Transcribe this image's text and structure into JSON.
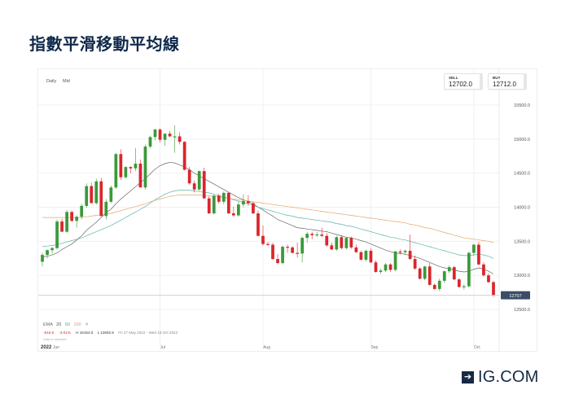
{
  "page": {
    "title": "指數平滑移動平均線",
    "brand": {
      "icon": "arrow-right-box-icon",
      "label": "IG.COM",
      "color": "#152a45"
    }
  },
  "chart_header": {
    "timeframe": "Daily",
    "price_type": "Mid",
    "sell": {
      "label": "SELL",
      "value": "12702.0"
    },
    "buy": {
      "label": "BUY",
      "value": "12712.0"
    }
  },
  "legend": {
    "indicator": "EMA",
    "periods": [
      {
        "label": "20",
        "color": "#555555"
      },
      {
        "label": "50",
        "color": "#4aa89a"
      },
      {
        "label": "100",
        "color": "#e0a060"
      }
    ],
    "close_label": "✕",
    "change": "-816.9",
    "change_pct": "-3.01%",
    "high": "H 15154.0",
    "low": "L 12692.5",
    "range": "Fri 27 May 2022 - Wed 19 Oct 2022",
    "data_note": "Data is indicative"
  },
  "colors": {
    "up": "#3a9a3a",
    "down": "#d9262c",
    "ema20": "#666666",
    "ema50": "#5bb3a8",
    "ema100": "#e3a66a",
    "grid": "#f0f0f0",
    "current_tag_bg": "#3b4d66"
  },
  "chart_data": {
    "type": "candlestick",
    "title": "指數平滑移動平均線",
    "instrument_period": "Daily Mid",
    "xlabel": "",
    "ylabel": "",
    "x_ticks": [
      {
        "label": "2022",
        "bold": true,
        "pos": 0
      },
      {
        "label": "Jun",
        "pos": 3
      },
      {
        "label": "Jul",
        "pos": 24
      },
      {
        "label": "Aug",
        "pos": 45
      },
      {
        "label": "Sep",
        "pos": 67
      },
      {
        "label": "Oct",
        "pos": 88
      }
    ],
    "y_ticks": [
      12500,
      13000,
      13500,
      14000,
      14500,
      15000,
      15500
    ],
    "y_tick_labels": [
      "12500.0",
      "13000.0",
      "13500.0",
      "14000.0",
      "14500.0",
      "15000.0",
      "15500.0"
    ],
    "ylim": [
      12000,
      15700
    ],
    "current_price": 12707,
    "current_price_label": "12707",
    "legend_position": "bottom-left",
    "grid": true,
    "ohlc": [
      [
        13200,
        13330,
        13130,
        13300
      ],
      [
        13300,
        13380,
        13250,
        13370
      ],
      [
        13370,
        13420,
        13320,
        13400
      ],
      [
        13400,
        13820,
        13380,
        13790
      ],
      [
        13790,
        13830,
        13650,
        13640
      ],
      [
        13640,
        13960,
        13620,
        13930
      ],
      [
        13930,
        13950,
        13780,
        13800
      ],
      [
        13800,
        13880,
        13700,
        13860
      ],
      [
        13860,
        14050,
        13820,
        14020
      ],
      [
        14020,
        14350,
        13990,
        14310
      ],
      [
        14310,
        14360,
        14100,
        14060
      ],
      [
        14060,
        14420,
        14040,
        14380
      ],
      [
        14380,
        14430,
        13970,
        13870
      ],
      [
        13870,
        14120,
        13820,
        14080
      ],
      [
        14080,
        14320,
        14060,
        14290
      ],
      [
        14290,
        14800,
        14270,
        14780
      ],
      [
        14780,
        14850,
        14400,
        14440
      ],
      [
        14440,
        14600,
        14420,
        14590
      ],
      [
        14590,
        14600,
        14500,
        14570
      ],
      [
        14570,
        14870,
        14530,
        14640
      ],
      [
        14640,
        14700,
        14300,
        14290
      ],
      [
        14290,
        14920,
        14260,
        14890
      ],
      [
        14890,
        15050,
        14860,
        15030
      ],
      [
        15030,
        15150,
        14980,
        15140
      ],
      [
        15140,
        15160,
        14950,
        14990
      ],
      [
        14990,
        15080,
        14900,
        15080
      ],
      [
        15080,
        15120,
        15030,
        15040
      ],
      [
        15040,
        15200,
        14800,
        15040
      ],
      [
        15040,
        15100,
        14920,
        14960
      ],
      [
        14960,
        14970,
        14540,
        14550
      ],
      [
        14550,
        14590,
        14330,
        14350
      ],
      [
        14350,
        14390,
        14220,
        14260
      ],
      [
        14260,
        14540,
        14240,
        14530
      ],
      [
        14530,
        14580,
        14120,
        14130
      ],
      [
        14130,
        14160,
        13900,
        13910
      ],
      [
        13910,
        14180,
        13890,
        14170
      ],
      [
        14170,
        14200,
        14050,
        14080
      ],
      [
        14080,
        14230,
        14040,
        14210
      ],
      [
        14210,
        14220,
        13900,
        13910
      ],
      [
        13910,
        14010,
        13860,
        13880
      ],
      [
        13880,
        14080,
        13860,
        14040
      ],
      [
        14040,
        14190,
        14000,
        14090
      ],
      [
        14090,
        14180,
        14020,
        14060
      ],
      [
        14060,
        14080,
        13900,
        13910
      ],
      [
        13910,
        13950,
        13570,
        13580
      ],
      [
        13580,
        13730,
        13440,
        13460
      ],
      [
        13460,
        13490,
        13430,
        13450
      ],
      [
        13450,
        13480,
        13230,
        13240
      ],
      [
        13240,
        13310,
        13160,
        13180
      ],
      [
        13180,
        13440,
        13160,
        13420
      ],
      [
        13420,
        13450,
        13330,
        13410
      ],
      [
        13410,
        13430,
        13320,
        13330
      ],
      [
        13330,
        13480,
        13260,
        13320
      ],
      [
        13320,
        13570,
        13190,
        13550
      ],
      [
        13550,
        13640,
        13480,
        13610
      ],
      [
        13610,
        13640,
        13530,
        13590
      ],
      [
        13590,
        13640,
        13560,
        13600
      ],
      [
        13600,
        13700,
        13560,
        13580
      ],
      [
        13580,
        13620,
        13420,
        13440
      ],
      [
        13440,
        13480,
        13370,
        13380
      ],
      [
        13380,
        13580,
        13360,
        13560
      ],
      [
        13560,
        13590,
        13380,
        13400
      ],
      [
        13400,
        13560,
        13380,
        13550
      ],
      [
        13550,
        13570,
        13390,
        13410
      ],
      [
        13410,
        13450,
        13330,
        13340
      ],
      [
        13340,
        13360,
        13220,
        13230
      ],
      [
        13230,
        13380,
        13200,
        13360
      ],
      [
        13360,
        13400,
        13180,
        13190
      ],
      [
        13190,
        13220,
        13040,
        13050
      ],
      [
        13050,
        13100,
        13020,
        13070
      ],
      [
        13070,
        13180,
        13050,
        13160
      ],
      [
        13160,
        13180,
        13050,
        13080
      ],
      [
        13080,
        13360,
        13060,
        13350
      ],
      [
        13350,
        13380,
        13310,
        13340
      ],
      [
        13340,
        13380,
        13300,
        13360
      ],
      [
        13360,
        13600,
        13230,
        13240
      ],
      [
        13240,
        13290,
        13080,
        13100
      ],
      [
        13100,
        13120,
        12940,
        12950
      ],
      [
        12950,
        13140,
        12930,
        13130
      ],
      [
        13130,
        13180,
        12850,
        12860
      ],
      [
        12860,
        12880,
        12790,
        12800
      ],
      [
        12800,
        12950,
        12770,
        12920
      ],
      [
        12920,
        13070,
        12890,
        13060
      ],
      [
        13060,
        13150,
        13030,
        13120
      ],
      [
        13120,
        13140,
        12930,
        12940
      ],
      [
        12940,
        12960,
        12820,
        12830
      ],
      [
        12830,
        12870,
        12790,
        12840
      ],
      [
        12840,
        13350,
        12820,
        13330
      ],
      [
        13330,
        13460,
        13290,
        13450
      ],
      [
        13450,
        13490,
        13150,
        13160
      ],
      [
        13160,
        13190,
        12980,
        13000
      ],
      [
        13000,
        13030,
        12890,
        12900
      ],
      [
        12900,
        12920,
        12690,
        12707
      ]
    ],
    "series": [
      {
        "name": "EMA 20",
        "values": [
          13270,
          13280,
          13300,
          13330,
          13380,
          13420,
          13460,
          13520,
          13580,
          13660,
          13720,
          13780,
          13850,
          13920,
          13970,
          14050,
          14120,
          14180,
          14240,
          14300,
          14360,
          14420,
          14490,
          14560,
          14610,
          14640,
          14660,
          14650,
          14620,
          14590,
          14550,
          14500,
          14460,
          14420,
          14380,
          14340,
          14300,
          14260,
          14220,
          14180,
          14140,
          14110,
          14080,
          14050,
          14000,
          13960,
          13910,
          13870,
          13820,
          13790,
          13760,
          13730,
          13700,
          13690,
          13680,
          13670,
          13660,
          13650,
          13640,
          13620,
          13600,
          13580,
          13560,
          13550,
          13530,
          13510,
          13490,
          13460,
          13430,
          13400,
          13370,
          13350,
          13330,
          13320,
          13310,
          13290,
          13270,
          13250,
          13220,
          13190,
          13160,
          13130,
          13110,
          13100,
          13080,
          13060,
          13050,
          13060,
          13090,
          13110,
          13090,
          13060,
          13020
        ]
      },
      {
        "name": "EMA 50",
        "values": [
          13420,
          13430,
          13440,
          13450,
          13470,
          13490,
          13510,
          13530,
          13550,
          13580,
          13610,
          13640,
          13670,
          13700,
          13730,
          13770,
          13810,
          13850,
          13890,
          13930,
          13970,
          14010,
          14060,
          14110,
          14150,
          14190,
          14220,
          14240,
          14250,
          14250,
          14250,
          14240,
          14230,
          14220,
          14210,
          14190,
          14170,
          14150,
          14130,
          14110,
          14090,
          14070,
          14050,
          14030,
          14000,
          13980,
          13960,
          13940,
          13920,
          13900,
          13880,
          13870,
          13850,
          13840,
          13830,
          13820,
          13810,
          13800,
          13790,
          13780,
          13760,
          13750,
          13730,
          13720,
          13700,
          13680,
          13660,
          13640,
          13620,
          13600,
          13580,
          13560,
          13550,
          13530,
          13520,
          13500,
          13480,
          13460,
          13440,
          13420,
          13400,
          13380,
          13360,
          13340,
          13320,
          13300,
          13290,
          13290,
          13300,
          13310,
          13300,
          13280,
          13250
        ]
      },
      {
        "name": "EMA 100",
        "values": [
          13850,
          13850,
          13850,
          13850,
          13850,
          13850,
          13850,
          13850,
          13850,
          13860,
          13870,
          13880,
          13890,
          13900,
          13910,
          13930,
          13950,
          13970,
          13990,
          14010,
          14030,
          14050,
          14080,
          14100,
          14120,
          14140,
          14160,
          14170,
          14180,
          14180,
          14180,
          14180,
          14180,
          14170,
          14170,
          14160,
          14150,
          14140,
          14130,
          14120,
          14110,
          14100,
          14090,
          14080,
          14070,
          14060,
          14050,
          14040,
          14030,
          14020,
          14010,
          14000,
          13990,
          13980,
          13970,
          13960,
          13950,
          13940,
          13930,
          13920,
          13910,
          13900,
          13890,
          13880,
          13870,
          13860,
          13850,
          13840,
          13830,
          13820,
          13810,
          13800,
          13790,
          13780,
          13770,
          13750,
          13740,
          13720,
          13700,
          13690,
          13670,
          13650,
          13630,
          13610,
          13590,
          13570,
          13550,
          13540,
          13530,
          13520,
          13510,
          13500,
          13480
        ]
      }
    ]
  }
}
